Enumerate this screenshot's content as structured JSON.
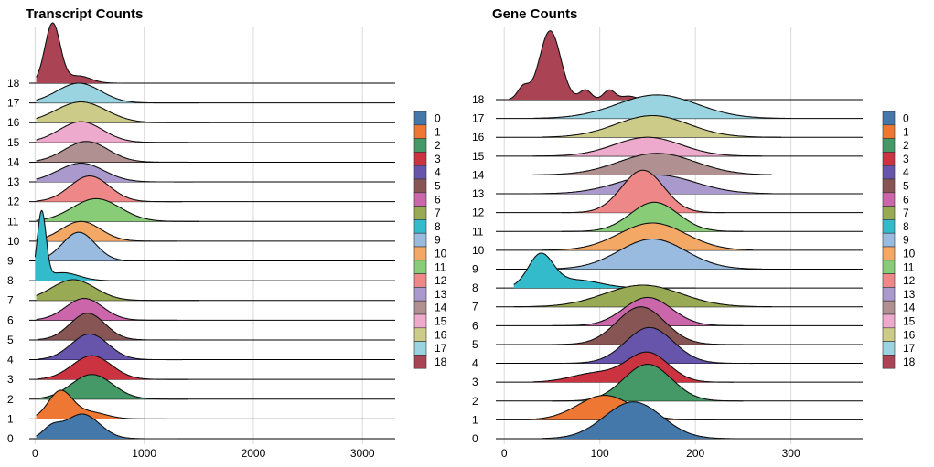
{
  "chart_data": [
    {
      "type": "area",
      "subtype": "ridgeline",
      "title": "Transcript Counts",
      "xlabel": "",
      "ylabel": "",
      "xlim": [
        -20,
        3300
      ],
      "xticks": [
        0,
        1000,
        2000,
        3000
      ],
      "grid": true,
      "legend": "right",
      "categories": [
        "0",
        "1",
        "2",
        "3",
        "4",
        "5",
        "6",
        "7",
        "8",
        "9",
        "10",
        "11",
        "12",
        "13",
        "14",
        "15",
        "16",
        "17",
        "18"
      ],
      "series": [
        {
          "name": "0",
          "peaks": [
            [
              430,
              160,
              0.65
            ],
            [
              150,
              80,
              0.25
            ]
          ],
          "xmin": 10,
          "xmax": 1300,
          "height": 1.25
        },
        {
          "name": "1",
          "peaks": [
            [
              230,
              110,
              1.0
            ],
            [
              500,
              150,
              0.25
            ]
          ],
          "xmin": 10,
          "xmax": 1200,
          "height": 1.45
        },
        {
          "name": "2",
          "peaks": [
            [
              520,
              190,
              1.0
            ]
          ],
          "xmin": 20,
          "xmax": 1400,
          "height": 1.25
        },
        {
          "name": "3",
          "peaks": [
            [
              520,
              180,
              1.0
            ]
          ],
          "xmin": 20,
          "xmax": 1400,
          "height": 1.2
        },
        {
          "name": "4",
          "peaks": [
            [
              500,
              170,
              1.0
            ]
          ],
          "xmin": 20,
          "xmax": 1350,
          "height": 1.3
        },
        {
          "name": "5",
          "peaks": [
            [
              480,
              160,
              1.0
            ]
          ],
          "xmin": 20,
          "xmax": 1300,
          "height": 1.35
        },
        {
          "name": "6",
          "peaks": [
            [
              450,
              170,
              1.0
            ]
          ],
          "xmin": 10,
          "xmax": 1300,
          "height": 1.1
        },
        {
          "name": "7",
          "peaks": [
            [
              350,
              200,
              1.0
            ]
          ],
          "xmin": 10,
          "xmax": 1500,
          "height": 1.05
        },
        {
          "name": "8",
          "peaks": [
            [
              60,
              40,
              1.0
            ],
            [
              250,
              150,
              0.12
            ]
          ],
          "xmin": 0,
          "xmax": 1000,
          "height": 3.55
        },
        {
          "name": "9",
          "peaks": [
            [
              400,
              150,
              1.0
            ]
          ],
          "xmin": 10,
          "xmax": 1300,
          "height": 1.45
        },
        {
          "name": "10",
          "peaks": [
            [
              420,
              180,
              1.0
            ]
          ],
          "xmin": 10,
          "xmax": 1300,
          "height": 1.0
        },
        {
          "name": "11",
          "peaks": [
            [
              560,
              220,
              1.0
            ]
          ],
          "xmin": 10,
          "xmax": 1500,
          "height": 1.15
        },
        {
          "name": "12",
          "peaks": [
            [
              500,
              180,
              1.0
            ]
          ],
          "xmin": 10,
          "xmax": 1350,
          "height": 1.3
        },
        {
          "name": "13",
          "peaks": [
            [
              420,
              210,
              1.0
            ]
          ],
          "xmin": 10,
          "xmax": 1450,
          "height": 0.95
        },
        {
          "name": "14",
          "peaks": [
            [
              470,
              200,
              1.0
            ]
          ],
          "xmin": 10,
          "xmax": 1400,
          "height": 1.05
        },
        {
          "name": "15",
          "peaks": [
            [
              420,
              200,
              1.0
            ]
          ],
          "xmin": 10,
          "xmax": 1400,
          "height": 1.05
        },
        {
          "name": "16",
          "peaks": [
            [
              420,
              230,
              1.0
            ]
          ],
          "xmin": 10,
          "xmax": 1600,
          "height": 1.05
        },
        {
          "name": "17",
          "peaks": [
            [
              400,
              200,
              1.0
            ]
          ],
          "xmin": 10,
          "xmax": 1500,
          "height": 1.0
        },
        {
          "name": "18",
          "peaks": [
            [
              160,
              70,
              1.0
            ],
            [
              400,
              110,
              0.12
            ]
          ],
          "xmin": 10,
          "xmax": 800,
          "height": 3.05
        }
      ]
    },
    {
      "type": "area",
      "subtype": "ridgeline",
      "title": "Gene Counts",
      "xlabel": "",
      "ylabel": "",
      "xlim": [
        -5,
        375
      ],
      "xticks": [
        0,
        100,
        200,
        300
      ],
      "grid": true,
      "legend": "right",
      "categories": [
        "0",
        "1",
        "2",
        "3",
        "4",
        "5",
        "6",
        "7",
        "8",
        "9",
        "10",
        "11",
        "12",
        "13",
        "14",
        "15",
        "16",
        "17",
        "18"
      ],
      "series": [
        {
          "name": "0",
          "peaks": [
            [
              135,
              30,
              1.0
            ]
          ],
          "xmin": 40,
          "xmax": 240,
          "height": 1.95
        },
        {
          "name": "1",
          "peaks": [
            [
              105,
              28,
              1.0
            ]
          ],
          "xmin": 20,
          "xmax": 220,
          "height": 1.3
        },
        {
          "name": "2",
          "peaks": [
            [
              150,
              25,
              1.0
            ]
          ],
          "xmin": 50,
          "xmax": 250,
          "height": 1.95
        },
        {
          "name": "3",
          "peaks": [
            [
              150,
              22,
              1.0
            ],
            [
              95,
              25,
              0.3
            ]
          ],
          "xmin": 30,
          "xmax": 240,
          "height": 1.6
        },
        {
          "name": "4",
          "peaks": [
            [
              152,
              25,
              1.0
            ]
          ],
          "xmin": 60,
          "xmax": 260,
          "height": 1.9
        },
        {
          "name": "5",
          "peaks": [
            [
              143,
              25,
              1.0
            ]
          ],
          "xmin": 50,
          "xmax": 250,
          "height": 2.0
        },
        {
          "name": "6",
          "peaks": [
            [
              150,
              25,
              1.0
            ]
          ],
          "xmin": 50,
          "xmax": 250,
          "height": 1.5
        },
        {
          "name": "7",
          "peaks": [
            [
              145,
              40,
              1.0
            ]
          ],
          "xmin": 10,
          "xmax": 280,
          "height": 1.15
        },
        {
          "name": "8",
          "peaks": [
            [
              38,
              13,
              1.0
            ],
            [
              75,
              25,
              0.25
            ]
          ],
          "xmin": 10,
          "xmax": 200,
          "height": 1.85
        },
        {
          "name": "9",
          "peaks": [
            [
              155,
              35,
              1.0
            ]
          ],
          "xmin": 30,
          "xmax": 270,
          "height": 1.6
        },
        {
          "name": "10",
          "peaks": [
            [
              155,
              35,
              1.0
            ]
          ],
          "xmin": 40,
          "xmax": 260,
          "height": 1.45
        },
        {
          "name": "11",
          "peaks": [
            [
              157,
              25,
              1.0
            ]
          ],
          "xmin": 60,
          "xmax": 250,
          "height": 1.55
        },
        {
          "name": "12",
          "peaks": [
            [
              145,
              22,
              1.0
            ]
          ],
          "xmin": 60,
          "xmax": 230,
          "height": 2.25
        },
        {
          "name": "13",
          "peaks": [
            [
              160,
              40,
              1.0
            ]
          ],
          "xmin": 30,
          "xmax": 280,
          "height": 1.0
        },
        {
          "name": "14",
          "peaks": [
            [
              160,
              40,
              1.0
            ]
          ],
          "xmin": 30,
          "xmax": 280,
          "height": 1.15
        },
        {
          "name": "15",
          "peaks": [
            [
              150,
              35,
              1.0
            ]
          ],
          "xmin": 30,
          "xmax": 270,
          "height": 1.0
        },
        {
          "name": "16",
          "peaks": [
            [
              155,
              38,
              1.0
            ]
          ],
          "xmin": 40,
          "xmax": 290,
          "height": 1.15
        },
        {
          "name": "17",
          "peaks": [
            [
              160,
              42,
              1.0
            ]
          ],
          "xmin": 30,
          "xmax": 300,
          "height": 1.25
        },
        {
          "name": "18",
          "peaks": [
            [
              48,
              11,
              1.0
            ],
            [
              20,
              6,
              0.18
            ],
            [
              85,
              6,
              0.14
            ],
            [
              110,
              6,
              0.14
            ],
            [
              130,
              8,
              0.05
            ]
          ],
          "xmin": 5,
          "xmax": 160,
          "height": 3.65
        }
      ]
    }
  ],
  "palette": [
    "#4477aa",
    "#ee7733",
    "#449966",
    "#cc3340",
    "#6655aa",
    "#885555",
    "#cc66aa",
    "#99aa55",
    "#33bbcc",
    "#99bbe0",
    "#f4a866",
    "#88cc77",
    "#ee8888",
    "#aa99cc",
    "#b09090",
    "#eeaacc",
    "#cccc88",
    "#99d4e0",
    "#aa4455"
  ]
}
